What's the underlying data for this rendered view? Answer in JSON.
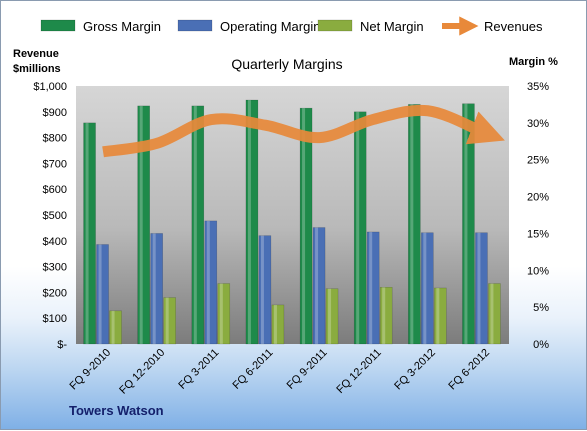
{
  "chart_data": {
    "type": "bar",
    "title": "Quarterly Margins",
    "categories": [
      "FQ 9-2010",
      "FQ 12-2010",
      "FQ 3-2011",
      "FQ 6-2011",
      "FQ 9-2011",
      "FQ 12-2011",
      "FQ 3-2012",
      "FQ 6-2012"
    ],
    "series": [
      {
        "name": "Gross Margin",
        "axis": "right",
        "values": [
          30.0,
          32.3,
          32.3,
          33.1,
          32.0,
          31.5,
          32.5,
          32.6
        ],
        "color": "#1e8a4a"
      },
      {
        "name": "Operating Margin",
        "axis": "right",
        "values": [
          13.5,
          15.0,
          16.7,
          14.7,
          15.8,
          15.2,
          15.1,
          15.1
        ],
        "color": "#4a6fb5"
      },
      {
        "name": "Net Margin",
        "axis": "right",
        "values": [
          4.5,
          6.3,
          8.2,
          5.3,
          7.5,
          7.7,
          7.6,
          8.2
        ],
        "color": "#8aac3f"
      },
      {
        "name": "Revenues",
        "axis": "left",
        "type": "line",
        "values": [
          745,
          778,
          870,
          848,
          800,
          871,
          904,
          823
        ],
        "color": "#e8893a"
      }
    ],
    "y_left": {
      "label_line1": "Revenue",
      "label_line2": "$millions",
      "min": 0,
      "max": 1000,
      "ticks": [
        "$-",
        "$100",
        "$200",
        "$300",
        "$400",
        "$500",
        "$600",
        "$700",
        "$800",
        "$900",
        "$1,000"
      ]
    },
    "y_right": {
      "label": "Margin %",
      "min": 0,
      "max": 35,
      "ticks": [
        "0%",
        "5%",
        "10%",
        "15%",
        "20%",
        "25%",
        "30%",
        "35%"
      ]
    },
    "legend_position": "top",
    "grid": false,
    "footer": "Towers Watson"
  }
}
